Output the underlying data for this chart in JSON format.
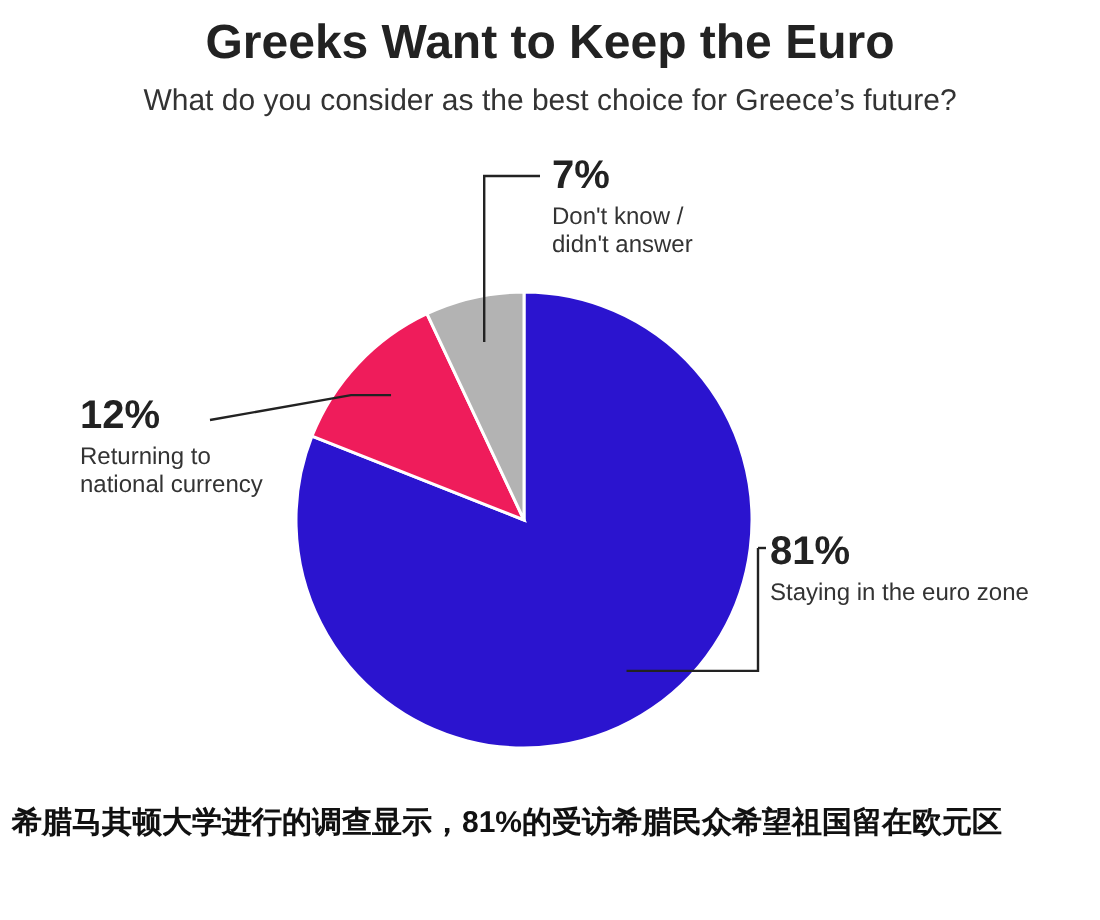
{
  "chart_data": {
    "type": "pie",
    "title": "Greeks Want to Keep the Euro",
    "subtitle": "What do you consider as the best choice for Greece’s future?",
    "categories": [
      "Staying in the euro zone",
      "Returning to national currency",
      "Don't know / didn't answer"
    ],
    "values": [
      81,
      12,
      7
    ],
    "value_labels": [
      "81%",
      "12%",
      "7%"
    ],
    "colors": [
      "#2b14cf",
      "#ef1c5b",
      "#b3b3b3"
    ],
    "annotations": [
      "希腊马其顿大学进行的调查显示，81%的受访希腊民众希望祖国留在欧元区"
    ]
  }
}
